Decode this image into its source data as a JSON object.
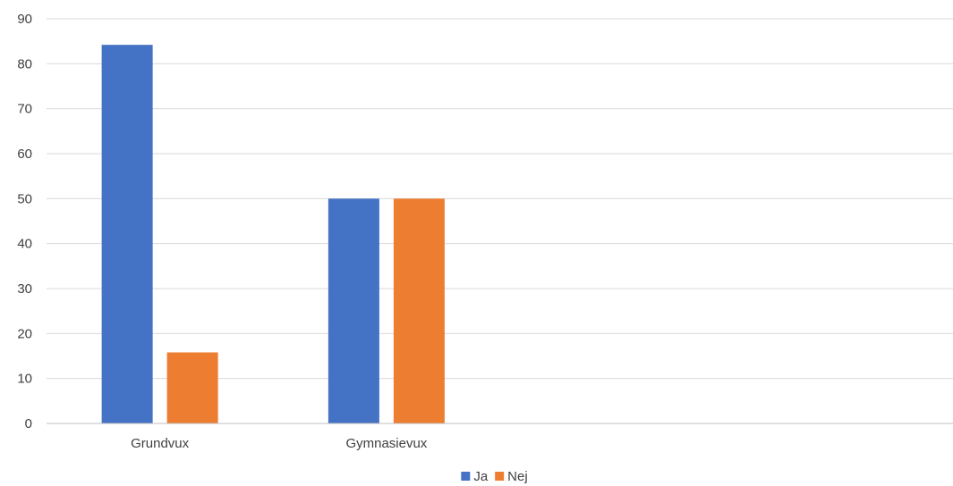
{
  "chart_data": {
    "type": "bar",
    "categories": [
      "Grundvux",
      "Gymnasievux",
      "",
      ""
    ],
    "series": [
      {
        "name": "Ja",
        "values": [
          84.2,
          50,
          null,
          null
        ],
        "color": "#4472C4"
      },
      {
        "name": "Nej",
        "values": [
          15.8,
          50,
          null,
          null
        ],
        "color": "#ED7D31"
      }
    ],
    "ylim": [
      0,
      90
    ],
    "yticks": [
      0,
      10,
      20,
      30,
      40,
      50,
      60,
      70,
      80,
      90
    ],
    "grid": true,
    "legend_position": "bottom",
    "gridline_color": "#D9D9D9",
    "axis_color": "#BFBFBF"
  }
}
